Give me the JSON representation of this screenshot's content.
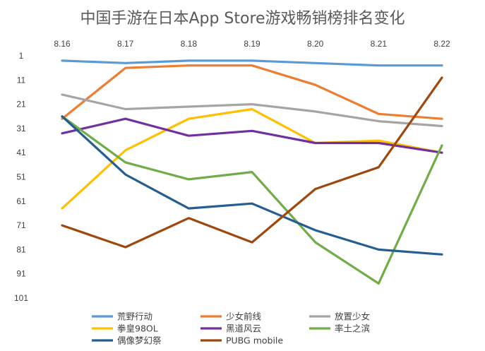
{
  "chart_data": {
    "type": "line",
    "title": "中国手游在日本App Store游戏畅销榜排名变化",
    "xlabel": "",
    "ylabel": "",
    "categories": [
      "8.16",
      "8.17",
      "8.18",
      "8.19",
      "8.20",
      "8.21",
      "8.22"
    ],
    "y_ticks": [
      1,
      11,
      21,
      31,
      41,
      51,
      61,
      71,
      81,
      91,
      101
    ],
    "ylim": [
      1,
      101
    ],
    "y_inverted": true,
    "x_axis_position": "top",
    "grid": false,
    "legend_position": "bottom",
    "series": [
      {
        "name": "荒野行动",
        "color": "#5B9BD5",
        "values": [
          3,
          4,
          3,
          3,
          4,
          5,
          5
        ]
      },
      {
        "name": "少女前线",
        "color": "#ED7D31",
        "values": [
          27,
          6,
          5,
          5,
          13,
          25,
          27
        ]
      },
      {
        "name": "放置少女",
        "color": "#A5A5A5",
        "values": [
          17,
          23,
          22,
          21,
          24,
          28,
          30
        ]
      },
      {
        "name": "拳皇98OL",
        "color": "#FFC000",
        "values": [
          64,
          40,
          27,
          23,
          37,
          36,
          41
        ]
      },
      {
        "name": "黑道风云",
        "color": "#7030A0",
        "values": [
          33,
          27,
          34,
          32,
          37,
          37,
          41
        ]
      },
      {
        "name": "率土之滨",
        "color": "#70AD47",
        "values": [
          26,
          45,
          52,
          49,
          78,
          95,
          38
        ]
      },
      {
        "name": "偶像梦幻祭",
        "color": "#255E91",
        "values": [
          26,
          50,
          64,
          62,
          73,
          81,
          83
        ]
      },
      {
        "name": "PUBG mobile",
        "color": "#9E480E",
        "values": [
          71,
          80,
          68,
          78,
          56,
          47,
          10
        ]
      }
    ]
  }
}
